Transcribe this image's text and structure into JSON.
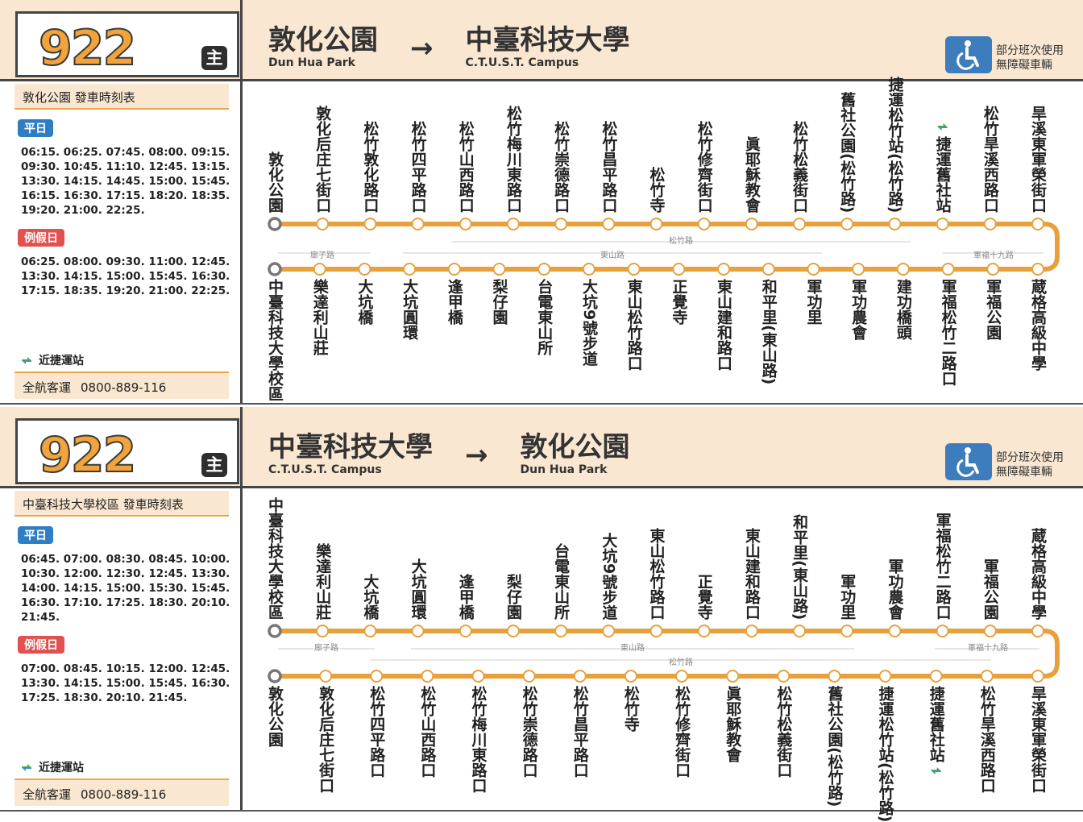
{
  "panels": [
    {
      "route": "922",
      "badge": "主",
      "origin": {
        "zh": "敦化公園",
        "en": "Dun Hua Park"
      },
      "destination": {
        "zh": "中臺科技大學",
        "en": "C.T.U.S.T. Campus"
      },
      "accessibility": [
        "部分班次使用",
        "無障礙車輛"
      ],
      "timetable_title": "敦化公園 發車時刻表",
      "weekday": {
        "label": "平日",
        "times": [
          "06:15. 06:25. 07:45. 08:00. 09:15.",
          "09:30. 10:45. 11:10. 12:45. 13:15.",
          "13:30. 14:15. 14:45. 15:00. 15:45.",
          "16:15. 16:30. 17:15. 18:20. 18:35.",
          "19:20. 21:00. 22:25."
        ]
      },
      "holiday": {
        "label": "例假日",
        "times": [
          "06:25. 08:00. 09:30. 11:00. 12:45.",
          "13:30. 14:15. 15:00. 15:45. 16:30.",
          "17:15. 18:35. 19:20. 21:00. 22:25."
        ]
      },
      "mrt_legend": "近捷運站",
      "operator": "全航客運",
      "phone": "0800-889-116",
      "top_stops": [
        "敦化公園",
        "敦化后庄七街口",
        "松竹敦化路口",
        "松竹四平路口",
        "松竹山西路口",
        "松竹梅川東路口",
        "松竹崇德路口",
        "松竹昌平路口",
        "松竹寺",
        "松竹修齊街口",
        "眞耶穌教會",
        "松竹松義街口",
        "舊社公園(松竹路)",
        "捷運松竹站(松竹路)",
        "捷運舊社站",
        "松竹旱溪西路口",
        "旱溪東軍榮街口"
      ],
      "bottom_stops": [
        "中臺科技大學校區",
        "樂達利山莊",
        "大坑橋",
        "大坑圓環",
        "逢甲橋",
        "梨仔園",
        "台電東山所",
        "大坑9號步道",
        "東山松竹路口",
        "正覺寺",
        "東山建和路口",
        "和平里(東山路)",
        "軍功里",
        "軍功農會",
        "建功橋頭",
        "軍福松竹二路口",
        "軍福公園",
        "蔵格高級中學"
      ],
      "top_roads": [
        "松竹路"
      ],
      "bottom_roads": [
        "廍子路",
        "東山路",
        "軍福十九路"
      ]
    },
    {
      "route": "922",
      "badge": "主",
      "origin": {
        "zh": "中臺科技大學",
        "en": "C.T.U.S.T. Campus"
      },
      "destination": {
        "zh": "敦化公園",
        "en": "Dun Hua Park"
      },
      "accessibility": [
        "部分班次使用",
        "無障礙車輛"
      ],
      "timetable_title": "中臺科技大學校區 發車時刻表",
      "weekday": {
        "label": "平日",
        "times": [
          "06:45. 07:00. 08:30. 08:45. 10:00.",
          "10:30. 12:00. 12:30. 12:45. 13:30.",
          "14:00. 14:15. 15:00. 15:30. 15:45.",
          "16:30. 17:10. 17:25. 18:30. 20:10.",
          "21:45."
        ]
      },
      "holiday": {
        "label": "例假日",
        "times": [
          "07:00. 08:45. 10:15. 12:00. 12:45.",
          "13:30. 14:15. 15:00. 15:45. 16:30.",
          "17:25. 18:30. 20:10. 21:45."
        ]
      },
      "mrt_legend": "近捷運站",
      "operator": "全航客運",
      "phone": "0800-889-116",
      "top_stops": [
        "中臺科技大學校區",
        "樂達利山莊",
        "大坑橋",
        "大坑圓環",
        "逢甲橋",
        "梨仔園",
        "台電東山所",
        "大坑9號步道",
        "東山松竹路口",
        "正覺寺",
        "東山建和路口",
        "和平里(東山路)",
        "軍功里",
        "軍功農會",
        "軍福松竹二路口",
        "軍福公園",
        "蔵格高級中學"
      ],
      "bottom_stops": [
        "敦化公園",
        "敦化后庄七街口",
        "松竹四平路口",
        "松竹山西路口",
        "松竹梅川東路口",
        "松竹崇德路口",
        "松竹昌平路口",
        "松竹寺",
        "松竹修齊街口",
        "眞耶穌教會",
        "松竹松義街口",
        "舊社公園(松竹路)",
        "捷運松竹站(松竹路)",
        "捷運舊社站",
        "松竹旱溪西路口",
        "旱溪東軍榮街口"
      ],
      "top_roads": [
        "廍子路",
        "東山路",
        "軍福十九路"
      ],
      "bottom_roads": [
        "松竹路"
      ]
    }
  ]
}
